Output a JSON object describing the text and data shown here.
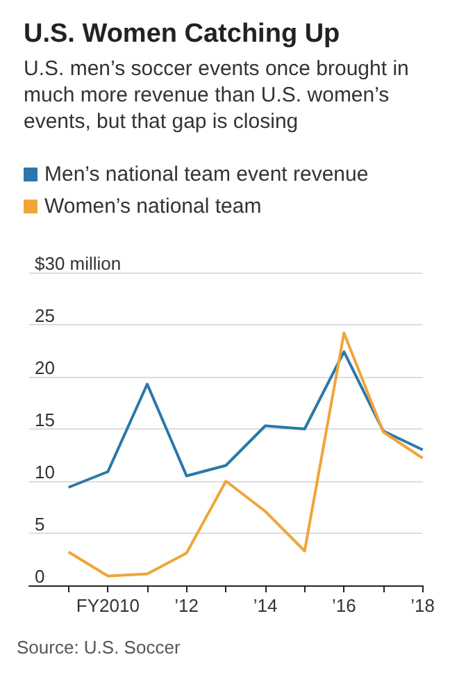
{
  "chart_data": {
    "type": "line",
    "title": "U.S. Women Catching Up",
    "subtitle": "U.S. men’s soccer events once brought in much more revenue than U.S. women’s events, but that gap is closing",
    "x": [
      2009,
      2010,
      2011,
      2012,
      2013,
      2014,
      2015,
      2016,
      2017,
      2018
    ],
    "series": [
      {
        "name": "Men’s national team event revenue",
        "color": "#2b78a8",
        "values": [
          9.4,
          10.9,
          19.3,
          10.5,
          11.5,
          15.3,
          15.0,
          22.4,
          14.8,
          13.0
        ]
      },
      {
        "name": "Women’s national team",
        "color": "#f0a53a",
        "values": [
          3.2,
          0.9,
          1.1,
          3.1,
          10.0,
          7.1,
          3.3,
          24.2,
          14.7,
          12.2
        ]
      }
    ],
    "xlim": [
      2008,
      2018
    ],
    "xticks": [
      {
        "value": 2009,
        "label": null
      },
      {
        "value": 2010,
        "label": "FY2010"
      },
      {
        "value": 2011,
        "label": null
      },
      {
        "value": 2012,
        "label": "’12"
      },
      {
        "value": 2013,
        "label": null
      },
      {
        "value": 2014,
        "label": "’14"
      },
      {
        "value": 2015,
        "label": null
      },
      {
        "value": 2016,
        "label": "’16"
      },
      {
        "value": 2017,
        "label": null
      },
      {
        "value": 2018,
        "label": "’18"
      }
    ],
    "ylim": [
      0,
      30
    ],
    "yticks": [
      0,
      5,
      10,
      15,
      20,
      25,
      {
        "value": 30,
        "label": "$30 million"
      }
    ],
    "grid": "y",
    "legend": "top left",
    "marker": "none",
    "line_style": "solid",
    "annotations": [
      "Source: U.S. Soccer"
    ]
  }
}
